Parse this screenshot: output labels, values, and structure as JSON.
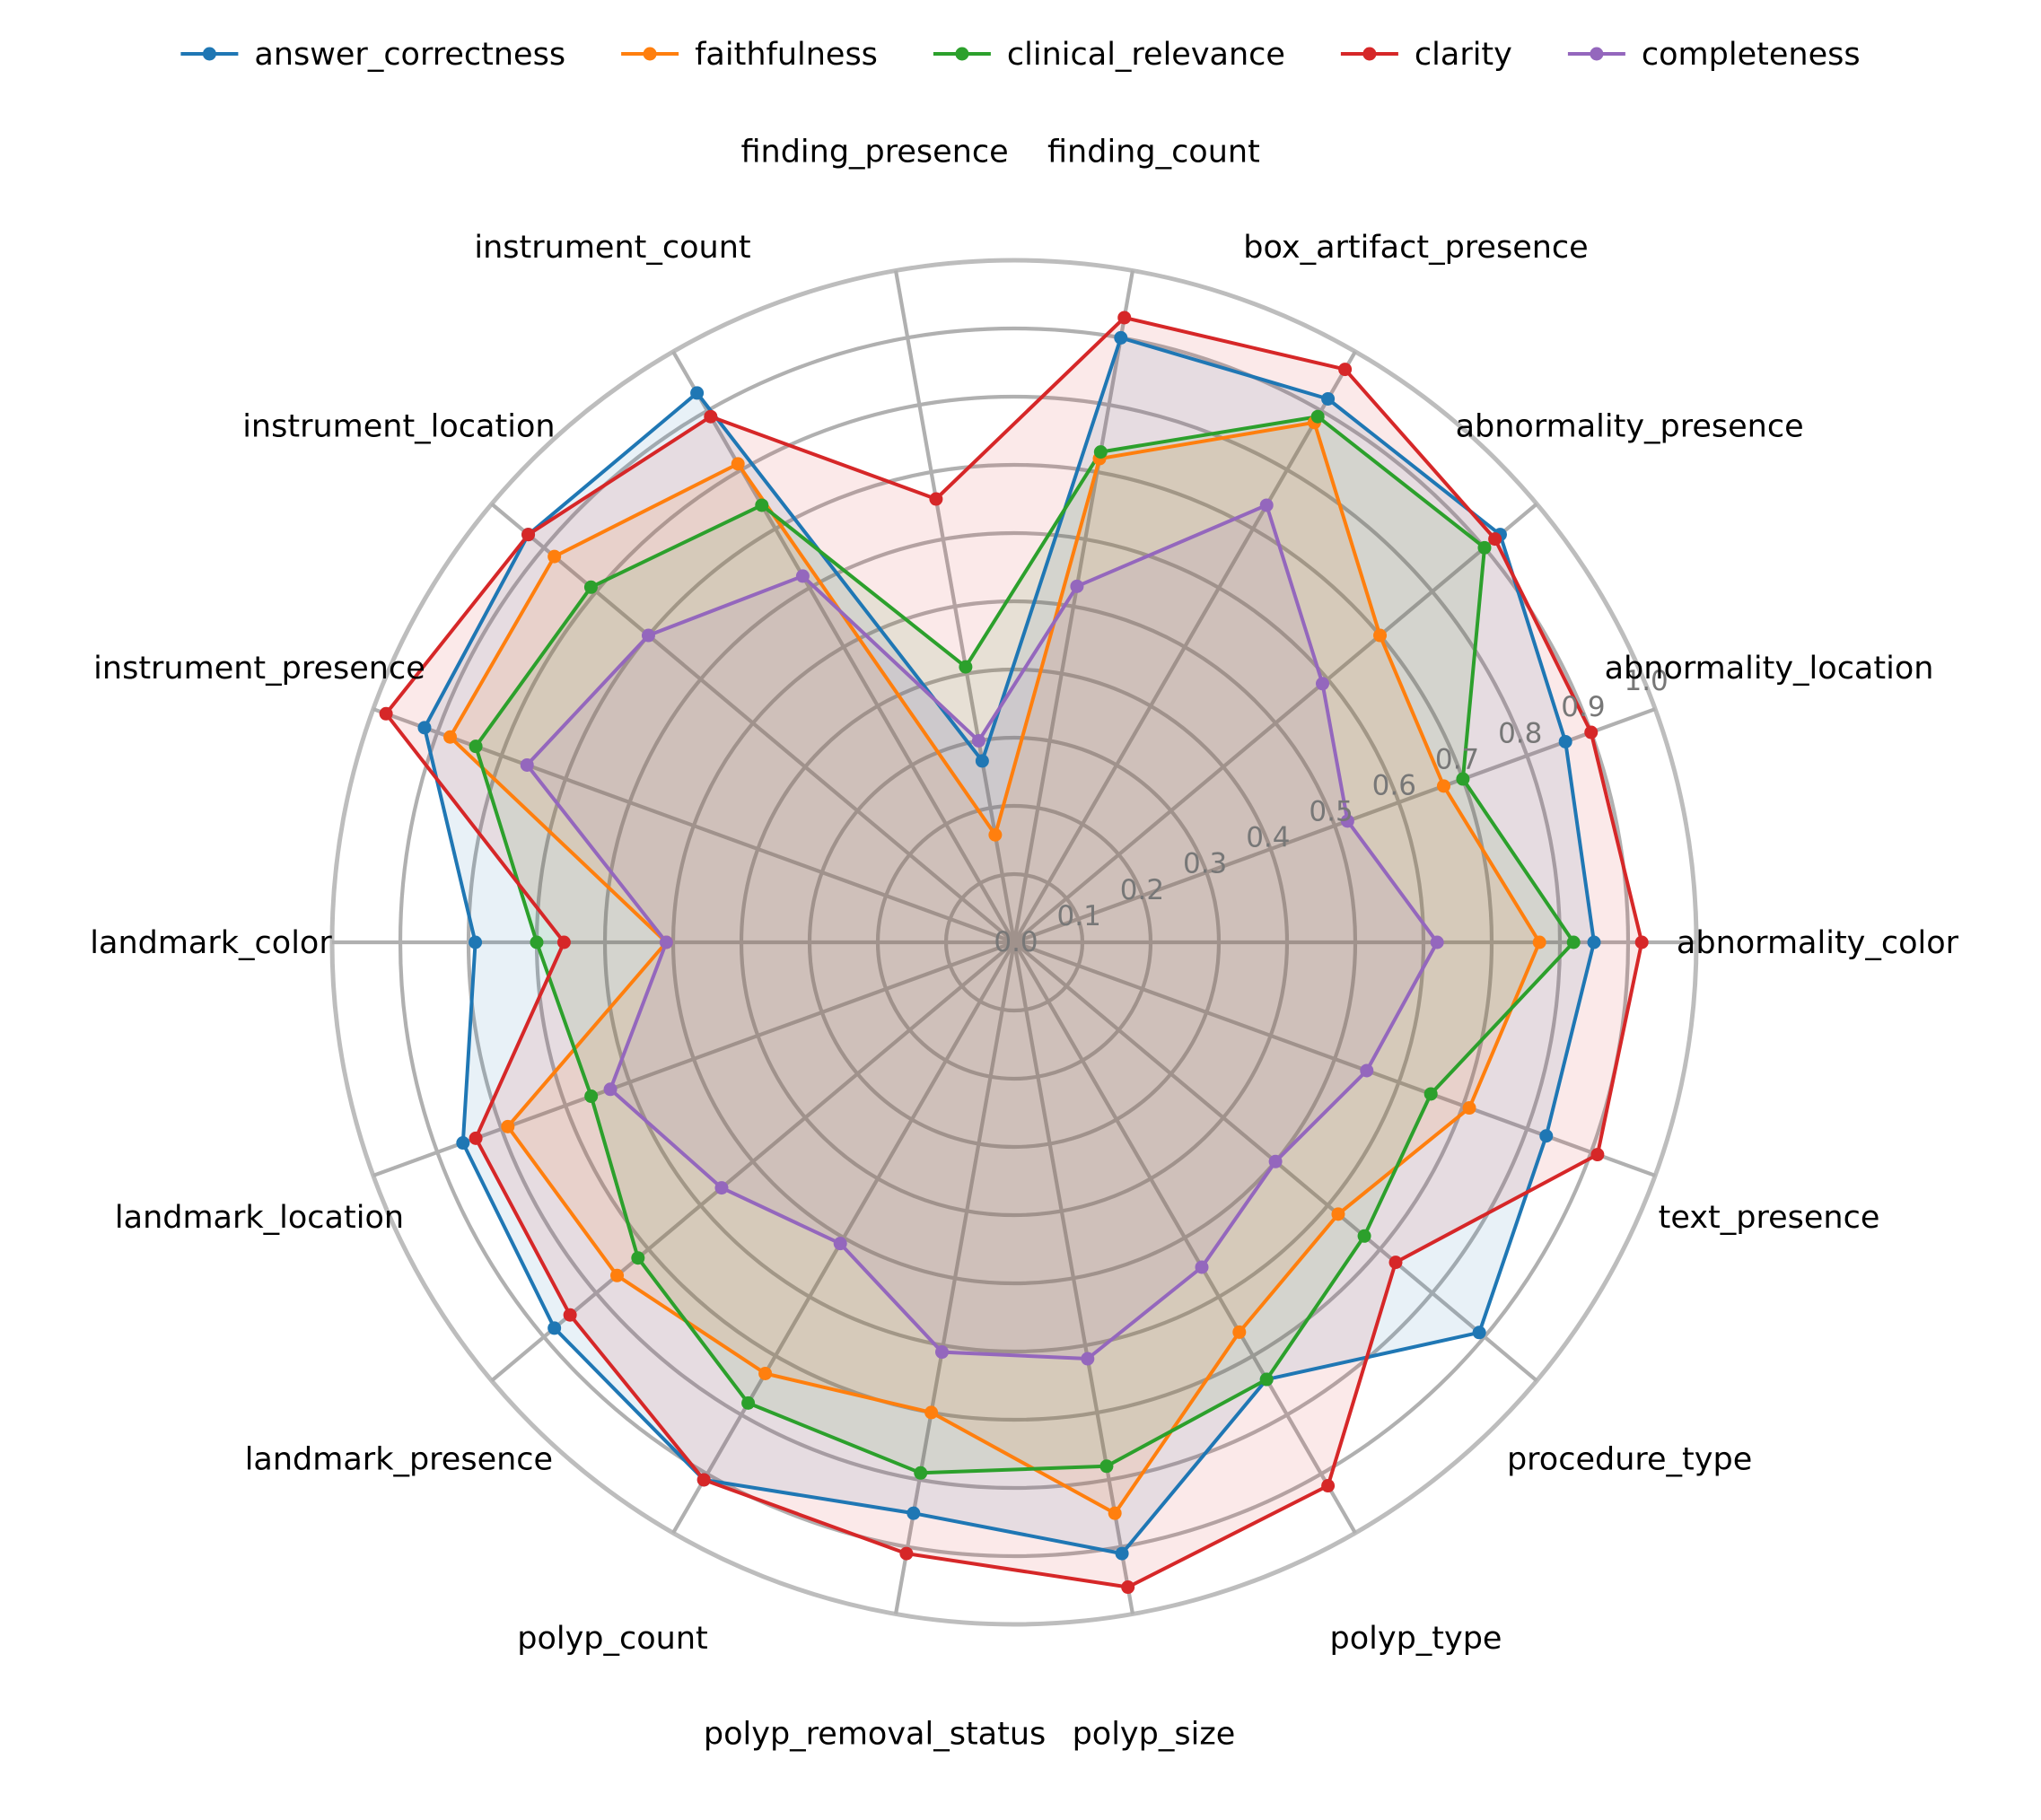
{
  "chart_data": {
    "type": "radar",
    "categories": [
      "abnormality_color",
      "abnormality_location",
      "abnormality_presence",
      "box_artifact_presence",
      "finding_count",
      "finding_presence",
      "instrument_count",
      "instrument_location",
      "instrument_presence",
      "landmark_color",
      "landmark_location",
      "landmark_presence",
      "polyp_count",
      "polyp_removal_status",
      "polyp_size",
      "polyp_type",
      "procedure_type",
      "text_presence"
    ],
    "rlim": [
      0,
      1.0
    ],
    "rticks": [
      0.0,
      0.1,
      0.2,
      0.3,
      0.4,
      0.5,
      0.6,
      0.7,
      0.8,
      0.9,
      1.0
    ],
    "rtick_labels": [
      "0.0",
      "0.1",
      "0.2",
      "0.3",
      "0.4",
      "0.5",
      "0.6",
      "0.7",
      "0.8",
      "0.9",
      "1.0"
    ],
    "rtick_label_angle_deg": 22.5,
    "grid": true,
    "legend_position": "top-center",
    "series": [
      {
        "name": "answer_correctness",
        "color": "#1f77b4",
        "fill_alpha": 0.1,
        "values": [
          0.85,
          0.86,
          0.93,
          0.92,
          0.9,
          0.27,
          0.93,
          0.93,
          0.92,
          0.79,
          0.86,
          0.88,
          0.91,
          0.85,
          0.91,
          0.74,
          0.89,
          0.83
        ]
      },
      {
        "name": "faithfulness",
        "color": "#ff7f0e",
        "fill_alpha": 0.1,
        "values": [
          0.77,
          0.67,
          0.7,
          0.88,
          0.72,
          0.16,
          0.81,
          0.88,
          0.88,
          0.51,
          0.79,
          0.76,
          0.73,
          0.7,
          0.85,
          0.66,
          0.62,
          0.71
        ]
      },
      {
        "name": "clinical_relevance",
        "color": "#2ca02c",
        "fill_alpha": 0.1,
        "values": [
          0.82,
          0.7,
          0.9,
          0.89,
          0.73,
          0.41,
          0.74,
          0.81,
          0.84,
          0.7,
          0.66,
          0.72,
          0.78,
          0.79,
          0.78,
          0.74,
          0.67,
          0.65
        ]
      },
      {
        "name": "clarity",
        "color": "#d62728",
        "fill_alpha": 0.1,
        "values": [
          0.92,
          0.9,
          0.92,
          0.97,
          0.93,
          0.66,
          0.89,
          0.93,
          0.98,
          0.66,
          0.84,
          0.85,
          0.91,
          0.91,
          0.96,
          0.92,
          0.73,
          0.91
        ]
      },
      {
        "name": "completeness",
        "color": "#9467bd",
        "fill_alpha": 0.1,
        "values": [
          0.62,
          0.52,
          0.59,
          0.74,
          0.53,
          0.3,
          0.62,
          0.7,
          0.76,
          0.51,
          0.63,
          0.56,
          0.51,
          0.61,
          0.62,
          0.55,
          0.5,
          0.55
        ]
      }
    ]
  }
}
